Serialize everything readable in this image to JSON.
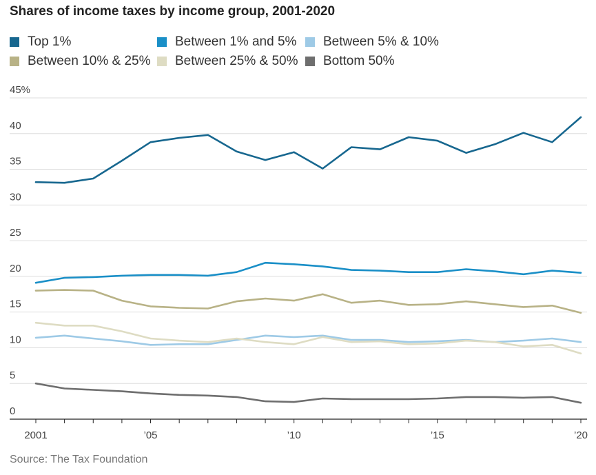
{
  "title": "Shares of income taxes by income group, 2001-2020",
  "source": "Source: The Tax Foundation",
  "legend": [
    {
      "label": "Top 1%",
      "color": "#17678f"
    },
    {
      "label": "Between 1% and 5%",
      "color": "#1a8fc7"
    },
    {
      "label": "Between 5% & 10%",
      "color": "#9ecae6"
    },
    {
      "label": "Between 10% & 25%",
      "color": "#b8b286"
    },
    {
      "label": "Between 25% & 50%",
      "color": "#dedcc3"
    },
    {
      "label": "Bottom 50%",
      "color": "#6e6e6e"
    }
  ],
  "chart_data": {
    "type": "line",
    "title": "Shares of income taxes by income group, 2001-2020",
    "x": [
      2001,
      2002,
      2003,
      2004,
      2005,
      2006,
      2007,
      2008,
      2009,
      2010,
      2011,
      2012,
      2013,
      2014,
      2015,
      2016,
      2017,
      2018,
      2019,
      2020
    ],
    "x_tick_labels": [
      {
        "x": 2001,
        "label": "2001"
      },
      {
        "x": 2005,
        "label": "’05"
      },
      {
        "x": 2010,
        "label": "’10"
      },
      {
        "x": 2015,
        "label": "’15"
      },
      {
        "x": 2020,
        "label": "’20"
      }
    ],
    "y_ticks": [
      {
        "value": 45,
        "label": "45%"
      },
      {
        "value": 40,
        "label": "40"
      },
      {
        "value": 35,
        "label": "35"
      },
      {
        "value": 30,
        "label": "30"
      },
      {
        "value": 25,
        "label": "25"
      },
      {
        "value": 20,
        "label": "20"
      },
      {
        "value": 15,
        "label": "15"
      },
      {
        "value": 10,
        "label": "10"
      },
      {
        "value": 5,
        "label": "5"
      },
      {
        "value": 0,
        "label": "0"
      }
    ],
    "ylim": [
      0,
      45
    ],
    "grid": true,
    "legend_position": "top",
    "series": [
      {
        "name": "Top 1%",
        "color": "#17678f",
        "values": [
          33.2,
          33.1,
          33.7,
          36.2,
          38.8,
          39.4,
          39.8,
          37.5,
          36.3,
          37.4,
          35.1,
          38.1,
          37.8,
          39.5,
          39.0,
          37.3,
          38.5,
          40.1,
          38.8,
          42.3
        ]
      },
      {
        "name": "Between 1% and 5%",
        "color": "#1a8fc7",
        "values": [
          19.1,
          19.8,
          19.9,
          20.1,
          20.2,
          20.2,
          20.1,
          20.6,
          21.9,
          21.7,
          21.4,
          20.9,
          20.8,
          20.6,
          20.6,
          21.0,
          20.7,
          20.3,
          20.8,
          20.5
        ]
      },
      {
        "name": "Between 5% & 10%",
        "color": "#9ecae6",
        "values": [
          11.4,
          11.7,
          11.3,
          10.9,
          10.4,
          10.5,
          10.5,
          11.1,
          11.7,
          11.5,
          11.7,
          11.1,
          11.1,
          10.8,
          10.9,
          11.1,
          10.8,
          11.0,
          11.3,
          10.8
        ]
      },
      {
        "name": "Between 10% & 25%",
        "color": "#b8b286",
        "values": [
          18.0,
          18.1,
          18.0,
          16.6,
          15.8,
          15.6,
          15.5,
          16.5,
          16.9,
          16.6,
          17.5,
          16.3,
          16.6,
          16.0,
          16.1,
          16.5,
          16.1,
          15.7,
          15.9,
          14.9
        ]
      },
      {
        "name": "Between 25% & 50%",
        "color": "#dedcc3",
        "values": [
          13.5,
          13.1,
          13.1,
          12.3,
          11.3,
          11.0,
          10.8,
          11.3,
          10.8,
          10.5,
          11.5,
          10.8,
          10.9,
          10.5,
          10.6,
          11.0,
          10.8,
          10.2,
          10.4,
          9.2
        ]
      },
      {
        "name": "Bottom 50%",
        "color": "#6e6e6e",
        "values": [
          5.0,
          4.3,
          4.1,
          3.9,
          3.6,
          3.4,
          3.3,
          3.1,
          2.5,
          2.4,
          2.9,
          2.8,
          2.8,
          2.8,
          2.9,
          3.1,
          3.1,
          3.0,
          3.1,
          2.3
        ]
      }
    ]
  }
}
